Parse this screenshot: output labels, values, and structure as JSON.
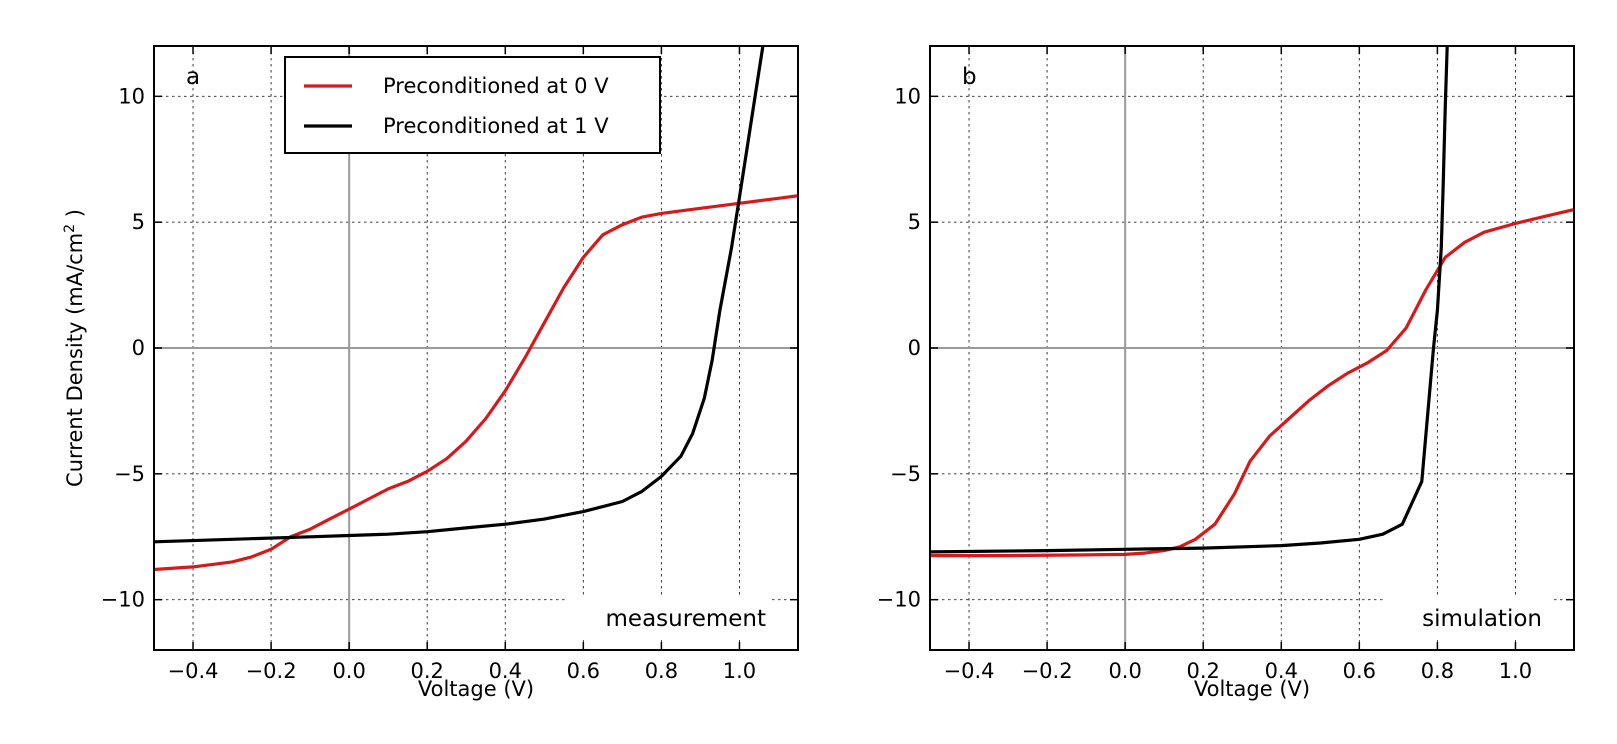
{
  "colors": {
    "red": "#d7191c",
    "black": "#000000"
  },
  "ylabel_main": "Current Density (mA/cm",
  "ylabel_sup": "2",
  "ylabel_end": " )",
  "legend": {
    "entries": [
      "Preconditioned at 0 V",
      "Preconditioned at 1 V"
    ]
  },
  "chart_data": [
    {
      "type": "line",
      "panel_label": "a",
      "annotation": "measurement",
      "xlabel": "Voltage (V)",
      "xlim": [
        -0.5,
        1.15
      ],
      "ylim": [
        -12,
        12
      ],
      "xticks": [
        -0.4,
        -0.2,
        0.0,
        0.2,
        0.4,
        0.6,
        0.8,
        1.0
      ],
      "xtick_labels": [
        "−0.4",
        "−0.2",
        "0.0",
        "0.2",
        "0.4",
        "0.6",
        "0.8",
        "1.0"
      ],
      "yticks": [
        -10,
        -5,
        0,
        5,
        10
      ],
      "ytick_labels": [
        "−10",
        "−5",
        "0",
        "5",
        "10"
      ],
      "grid": true,
      "series": [
        {
          "name": "Preconditioned at 0 V",
          "color": "#d7191c",
          "x": [
            -0.5,
            -0.4,
            -0.3,
            -0.25,
            -0.2,
            -0.15,
            -0.1,
            -0.05,
            0.0,
            0.05,
            0.1,
            0.15,
            0.2,
            0.25,
            0.3,
            0.35,
            0.4,
            0.45,
            0.5,
            0.55,
            0.6,
            0.65,
            0.7,
            0.75,
            0.8,
            0.9,
            1.0,
            1.1,
            1.15
          ],
          "y": [
            -8.8,
            -8.7,
            -8.5,
            -8.3,
            -8.0,
            -7.5,
            -7.2,
            -6.8,
            -6.4,
            -6.0,
            -5.6,
            -5.3,
            -4.9,
            -4.4,
            -3.7,
            -2.8,
            -1.7,
            -0.4,
            1.0,
            2.4,
            3.6,
            4.5,
            4.9,
            5.2,
            5.35,
            5.55,
            5.75,
            5.95,
            6.05
          ]
        },
        {
          "name": "Preconditioned at 1 V",
          "color": "#000000",
          "x": [
            -0.5,
            -0.3,
            -0.1,
            0.0,
            0.1,
            0.2,
            0.3,
            0.4,
            0.5,
            0.6,
            0.7,
            0.75,
            0.8,
            0.85,
            0.88,
            0.91,
            0.93,
            0.95,
            0.98,
            1.0,
            1.02,
            1.04,
            1.06
          ],
          "y": [
            -7.7,
            -7.6,
            -7.5,
            -7.45,
            -7.4,
            -7.3,
            -7.15,
            -7.0,
            -6.8,
            -6.5,
            -6.1,
            -5.7,
            -5.1,
            -4.3,
            -3.4,
            -2.0,
            -0.5,
            1.5,
            4.0,
            6.0,
            8.0,
            10.0,
            12.0
          ]
        }
      ]
    },
    {
      "type": "line",
      "panel_label": "b",
      "annotation": "simulation",
      "xlabel": "Voltage (V)",
      "xlim": [
        -0.5,
        1.15
      ],
      "ylim": [
        -12,
        12
      ],
      "xticks": [
        -0.4,
        -0.2,
        0.0,
        0.2,
        0.4,
        0.6,
        0.8,
        1.0
      ],
      "xtick_labels": [
        "−0.4",
        "−0.2",
        "0.0",
        "0.2",
        "0.4",
        "0.6",
        "0.8",
        "1.0"
      ],
      "yticks": [
        -10,
        -5,
        0,
        5,
        10
      ],
      "ytick_labels": [
        "−10",
        "−5",
        "0",
        "5",
        "10"
      ],
      "grid": true,
      "series": [
        {
          "name": "Preconditioned at 0 V",
          "color": "#d7191c",
          "x": [
            -0.5,
            -0.3,
            -0.1,
            0.0,
            0.05,
            0.1,
            0.14,
            0.18,
            0.23,
            0.28,
            0.32,
            0.37,
            0.42,
            0.47,
            0.52,
            0.57,
            0.62,
            0.67,
            0.72,
            0.77,
            0.82,
            0.87,
            0.92,
            1.0,
            1.08,
            1.15
          ],
          "y": [
            -8.25,
            -8.25,
            -8.22,
            -8.2,
            -8.15,
            -8.05,
            -7.9,
            -7.6,
            -7.0,
            -5.8,
            -4.5,
            -3.5,
            -2.8,
            -2.1,
            -1.5,
            -1.0,
            -0.6,
            -0.1,
            0.8,
            2.3,
            3.6,
            4.2,
            4.6,
            4.95,
            5.25,
            5.5
          ]
        },
        {
          "name": "Preconditioned at 1 V",
          "color": "#000000",
          "x": [
            -0.5,
            -0.2,
            0.0,
            0.2,
            0.4,
            0.5,
            0.6,
            0.66,
            0.71,
            0.76,
            0.79,
            0.8,
            0.81,
            0.815,
            0.82,
            0.825
          ],
          "y": [
            -8.1,
            -8.05,
            -8.0,
            -7.95,
            -7.85,
            -7.75,
            -7.6,
            -7.4,
            -7.0,
            -5.3,
            0.0,
            1.5,
            4.0,
            6.5,
            9.5,
            12.0
          ]
        }
      ]
    }
  ]
}
